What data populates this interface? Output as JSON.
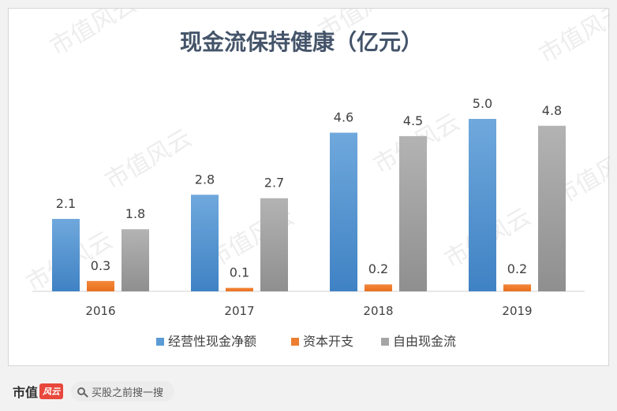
{
  "chart_data": {
    "type": "bar",
    "title": "现金流保持健康（亿元）",
    "categories": [
      "2016",
      "2017",
      "2018",
      "2019"
    ],
    "series": [
      {
        "name": "经营性现金净额",
        "values": [
          2.1,
          2.8,
          4.6,
          5.0
        ],
        "color": "#5b9bd5"
      },
      {
        "name": "资本开支",
        "values": [
          0.3,
          0.1,
          0.2,
          0.2
        ],
        "color": "#ed7d31"
      },
      {
        "name": "自由现金流",
        "values": [
          1.8,
          2.7,
          4.5,
          4.8
        ],
        "color": "#a5a5a5"
      }
    ],
    "ylim": [
      0,
      5.0
    ],
    "grid": false,
    "legend_position": "bottom",
    "value_labels": true
  },
  "watermark": "市值风云",
  "footer": {
    "brand_name": "市值",
    "brand_mark": "风云",
    "search_text": "买股之前搜一搜"
  }
}
